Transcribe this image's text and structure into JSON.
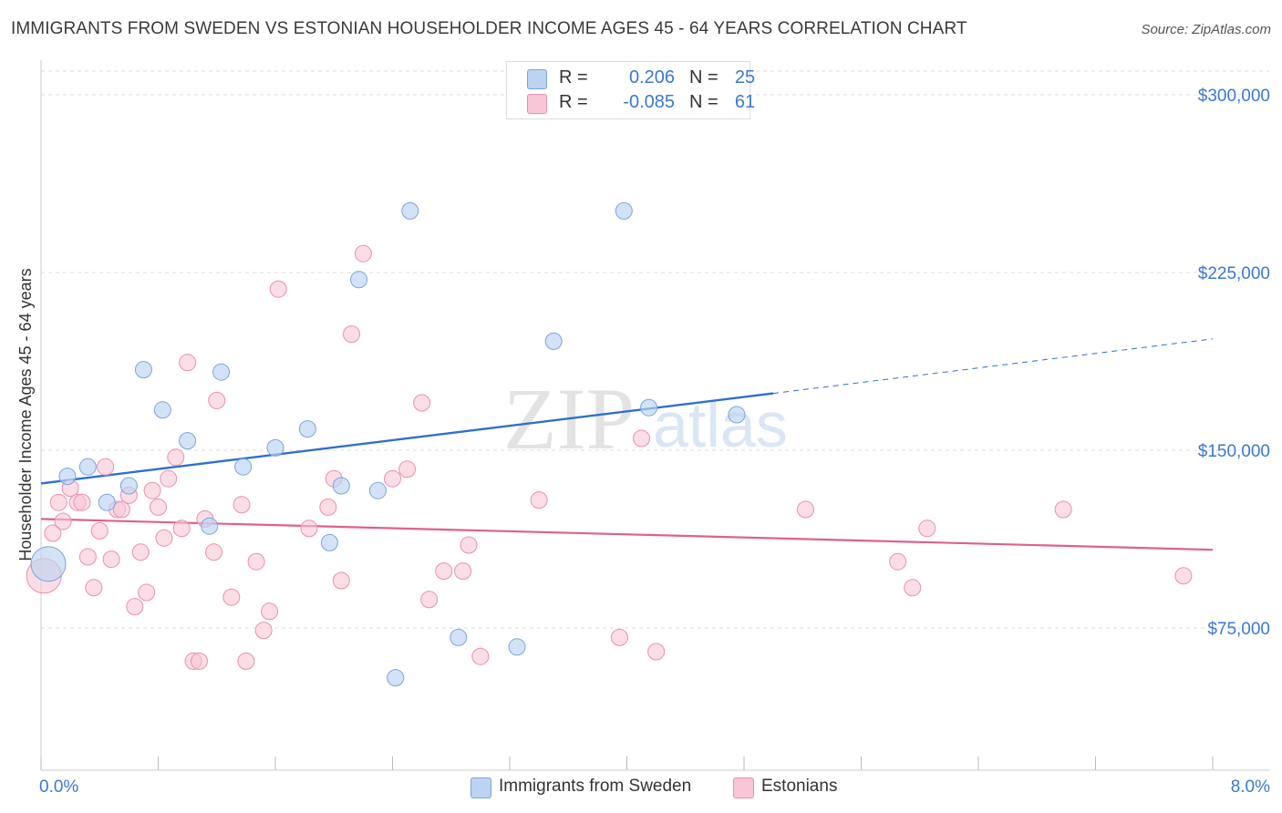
{
  "title": "IMMIGRANTS FROM SWEDEN VS ESTONIAN HOUSEHOLDER INCOME AGES 45 - 64 YEARS CORRELATION CHART",
  "source": "Source: ZipAtlas.com",
  "watermark": {
    "zip": "ZIP",
    "atlas": "atlas"
  },
  "colors": {
    "sweden_fill": "#bcd4f2",
    "sweden_stroke": "#7aa4dc",
    "sweden_line": "#2f6fcf",
    "eston_fill": "#f8c6d6",
    "eston_stroke": "#ea90ad",
    "eston_line": "#e0608a",
    "axis_text": "#3a78d4",
    "grid": "#dddddd"
  },
  "legend_top": {
    "rows": [
      {
        "r_label": "R =",
        "r_value": "0.206",
        "n_label": "N =",
        "n_value": "25"
      },
      {
        "r_label": "R =",
        "r_value": "-0.085",
        "n_label": "N =",
        "n_value": "61"
      }
    ]
  },
  "legend_bottom": [
    {
      "label": "Immigrants from Sweden"
    },
    {
      "label": "Estonians"
    }
  ],
  "chart_data": {
    "type": "scatter",
    "title": "IMMIGRANTS FROM SWEDEN VS ESTONIAN HOUSEHOLDER INCOME AGES 45 - 64 YEARS CORRELATION CHART",
    "xlabel": "",
    "ylabel": "Householder Income Ages 45 - 64 years",
    "xlim": [
      0,
      8
    ],
    "ylim": [
      15000,
      310000
    ],
    "x_tick_labels": [
      "0.0%",
      "8.0%"
    ],
    "y_ticks": [
      75000,
      150000,
      225000,
      300000
    ],
    "y_tick_labels": [
      "$75,000",
      "$150,000",
      "$225,000",
      "$300,000"
    ],
    "grid": true,
    "legend": "bottom",
    "series": [
      {
        "name": "Immigrants from Sweden",
        "r": 0.206,
        "n": 25,
        "trend": {
          "x0": 0.0,
          "y0": 136000,
          "x1": 5.0,
          "y1": 174000,
          "x_dash_end": 8.0,
          "y_dash_end": 197000
        },
        "points": [
          {
            "x": 0.05,
            "y": 102000,
            "big": true
          },
          {
            "x": 0.18,
            "y": 139000
          },
          {
            "x": 0.32,
            "y": 143000
          },
          {
            "x": 0.45,
            "y": 128000
          },
          {
            "x": 0.6,
            "y": 135000
          },
          {
            "x": 0.7,
            "y": 184000
          },
          {
            "x": 0.83,
            "y": 167000
          },
          {
            "x": 1.0,
            "y": 154000
          },
          {
            "x": 1.15,
            "y": 118000
          },
          {
            "x": 1.23,
            "y": 183000
          },
          {
            "x": 1.38,
            "y": 143000
          },
          {
            "x": 1.6,
            "y": 151000
          },
          {
            "x": 1.82,
            "y": 159000
          },
          {
            "x": 1.97,
            "y": 111000
          },
          {
            "x": 2.05,
            "y": 135000
          },
          {
            "x": 2.17,
            "y": 222000
          },
          {
            "x": 2.3,
            "y": 133000
          },
          {
            "x": 2.42,
            "y": 54000
          },
          {
            "x": 2.52,
            "y": 251000
          },
          {
            "x": 2.85,
            "y": 71000
          },
          {
            "x": 3.25,
            "y": 67000
          },
          {
            "x": 3.5,
            "y": 196000
          },
          {
            "x": 3.98,
            "y": 251000
          },
          {
            "x": 4.15,
            "y": 168000
          },
          {
            "x": 4.75,
            "y": 165000
          }
        ]
      },
      {
        "name": "Estonians",
        "r": -0.085,
        "n": 61,
        "trend": {
          "x0": 0.0,
          "y0": 121000,
          "x1": 8.0,
          "y1": 108000
        },
        "points": [
          {
            "x": 0.02,
            "y": 97000,
            "big": true
          },
          {
            "x": 0.08,
            "y": 115000
          },
          {
            "x": 0.12,
            "y": 128000
          },
          {
            "x": 0.15,
            "y": 120000
          },
          {
            "x": 0.2,
            "y": 134000
          },
          {
            "x": 0.25,
            "y": 128000
          },
          {
            "x": 0.28,
            "y": 128000
          },
          {
            "x": 0.32,
            "y": 105000
          },
          {
            "x": 0.36,
            "y": 92000
          },
          {
            "x": 0.4,
            "y": 116000
          },
          {
            "x": 0.44,
            "y": 143000
          },
          {
            "x": 0.48,
            "y": 104000
          },
          {
            "x": 0.52,
            "y": 125000
          },
          {
            "x": 0.55,
            "y": 125000
          },
          {
            "x": 0.6,
            "y": 131000
          },
          {
            "x": 0.64,
            "y": 84000
          },
          {
            "x": 0.68,
            "y": 107000
          },
          {
            "x": 0.72,
            "y": 90000
          },
          {
            "x": 0.76,
            "y": 133000
          },
          {
            "x": 0.8,
            "y": 126000
          },
          {
            "x": 0.84,
            "y": 113000
          },
          {
            "x": 0.87,
            "y": 138000
          },
          {
            "x": 0.92,
            "y": 147000
          },
          {
            "x": 0.96,
            "y": 117000
          },
          {
            "x": 1.0,
            "y": 187000
          },
          {
            "x": 1.04,
            "y": 61000
          },
          {
            "x": 1.08,
            "y": 61000
          },
          {
            "x": 1.12,
            "y": 121000
          },
          {
            "x": 1.18,
            "y": 107000
          },
          {
            "x": 1.2,
            "y": 171000
          },
          {
            "x": 1.3,
            "y": 88000
          },
          {
            "x": 1.37,
            "y": 127000
          },
          {
            "x": 1.4,
            "y": 61000
          },
          {
            "x": 1.47,
            "y": 103000
          },
          {
            "x": 1.52,
            "y": 74000
          },
          {
            "x": 1.56,
            "y": 82000
          },
          {
            "x": 1.62,
            "y": 218000
          },
          {
            "x": 1.83,
            "y": 117000
          },
          {
            "x": 1.96,
            "y": 126000
          },
          {
            "x": 2.0,
            "y": 138000
          },
          {
            "x": 2.05,
            "y": 95000
          },
          {
            "x": 2.12,
            "y": 199000
          },
          {
            "x": 2.2,
            "y": 233000
          },
          {
            "x": 2.4,
            "y": 138000
          },
          {
            "x": 2.5,
            "y": 142000
          },
          {
            "x": 2.6,
            "y": 170000
          },
          {
            "x": 2.65,
            "y": 87000
          },
          {
            "x": 2.75,
            "y": 99000
          },
          {
            "x": 2.88,
            "y": 99000
          },
          {
            "x": 2.92,
            "y": 110000
          },
          {
            "x": 3.0,
            "y": 63000
          },
          {
            "x": 3.4,
            "y": 129000
          },
          {
            "x": 3.95,
            "y": 71000
          },
          {
            "x": 4.1,
            "y": 155000
          },
          {
            "x": 4.2,
            "y": 65000
          },
          {
            "x": 5.22,
            "y": 125000
          },
          {
            "x": 5.85,
            "y": 103000
          },
          {
            "x": 5.95,
            "y": 92000
          },
          {
            "x": 6.05,
            "y": 117000
          },
          {
            "x": 6.98,
            "y": 125000
          },
          {
            "x": 7.8,
            "y": 97000
          }
        ]
      }
    ]
  }
}
